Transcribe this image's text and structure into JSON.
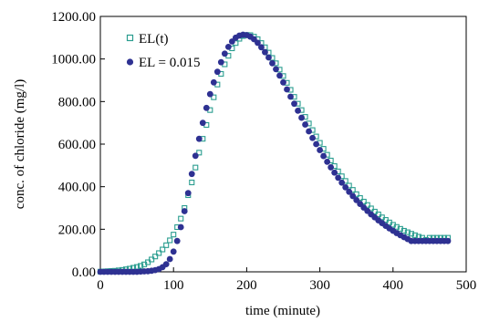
{
  "chart_data": {
    "type": "scatter",
    "xlabel": "time (minute)",
    "ylabel": "conc. of chloride (mg/l)",
    "xlim": [
      0,
      500
    ],
    "ylim": [
      0,
      1200
    ],
    "x_ticks": [
      "0",
      "100",
      "200",
      "300",
      "400",
      "500"
    ],
    "y_ticks": [
      "0.00",
      "200.00",
      "400.00",
      "600.00",
      "800.00",
      "1000.00",
      "1200.00"
    ],
    "grid": false,
    "legend_position": "top-left",
    "series": [
      {
        "name": "EL(t)",
        "marker": "hollow-square",
        "color": "#2a9d8f",
        "x": [
          0,
          5,
          10,
          15,
          20,
          25,
          30,
          35,
          40,
          45,
          50,
          55,
          60,
          65,
          70,
          75,
          80,
          85,
          90,
          95,
          100,
          105,
          110,
          115,
          120,
          125,
          130,
          135,
          140,
          145,
          150,
          155,
          160,
          165,
          170,
          175,
          180,
          185,
          190,
          195,
          200,
          205,
          210,
          215,
          220,
          225,
          230,
          235,
          240,
          245,
          250,
          255,
          260,
          265,
          270,
          275,
          280,
          285,
          290,
          295,
          300,
          305,
          310,
          315,
          320,
          325,
          330,
          335,
          340,
          345,
          350,
          355,
          360,
          365,
          370,
          375,
          380,
          385,
          390,
          395,
          400,
          405,
          410,
          415,
          420,
          425,
          430,
          435,
          440,
          445,
          450,
          455,
          460,
          465,
          470,
          475
        ],
        "y": [
          1,
          2,
          3,
          4,
          5,
          7,
          9,
          12,
          15,
          19,
          23,
          28,
          35,
          45,
          58,
          72,
          88,
          105,
          125,
          148,
          175,
          210,
          250,
          300,
          360,
          420,
          490,
          560,
          625,
          690,
          760,
          820,
          880,
          930,
          975,
          1015,
          1050,
          1075,
          1095,
          1108,
          1113,
          1112,
          1105,
          1093,
          1075,
          1055,
          1030,
          1005,
          980,
          950,
          920,
          888,
          855,
          822,
          790,
          760,
          728,
          697,
          666,
          636,
          606,
          578,
          550,
          523,
          497,
          472,
          449,
          427,
          405,
          385,
          365,
          347,
          330,
          314,
          298,
          283,
          270,
          256,
          244,
          232,
          221,
          211,
          202,
          193,
          186,
          179,
          172,
          165,
          160,
          150,
          160,
          160,
          160,
          160,
          160,
          160
        ]
      },
      {
        "name": "EL = 0.015",
        "marker": "filled-circle",
        "color": "#2e3192",
        "x": [
          0,
          5,
          10,
          15,
          20,
          25,
          30,
          35,
          40,
          45,
          50,
          55,
          60,
          65,
          70,
          75,
          80,
          85,
          90,
          95,
          100,
          105,
          110,
          115,
          120,
          125,
          130,
          135,
          140,
          145,
          150,
          155,
          160,
          165,
          170,
          175,
          180,
          185,
          190,
          195,
          200,
          205,
          210,
          215,
          220,
          225,
          230,
          235,
          240,
          245,
          250,
          255,
          260,
          265,
          270,
          275,
          280,
          285,
          290,
          295,
          300,
          305,
          310,
          315,
          320,
          325,
          330,
          335,
          340,
          345,
          350,
          355,
          360,
          365,
          370,
          375,
          380,
          385,
          390,
          395,
          400,
          405,
          410,
          415,
          420,
          425,
          430,
          435,
          440,
          445,
          450,
          455,
          460,
          465,
          470,
          475
        ],
        "y": [
          0,
          0,
          0,
          0,
          0,
          0,
          0,
          0,
          0,
          0,
          0,
          1,
          2,
          3,
          5,
          8,
          13,
          22,
          36,
          60,
          95,
          145,
          210,
          285,
          370,
          460,
          545,
          625,
          700,
          770,
          835,
          890,
          940,
          985,
          1025,
          1057,
          1082,
          1100,
          1110,
          1114,
          1112,
          1105,
          1093,
          1076,
          1055,
          1032,
          1007,
          980,
          952,
          922,
          890,
          857,
          823,
          790,
          757,
          724,
          692,
          660,
          629,
          600,
          572,
          544,
          517,
          491,
          466,
          442,
          419,
          397,
          376,
          356,
          337,
          319,
          302,
          286,
          270,
          256,
          242,
          229,
          216,
          204,
          193,
          182,
          172,
          163,
          154,
          145,
          145,
          145,
          145,
          145,
          145,
          145,
          145,
          145,
          145,
          145
        ]
      }
    ]
  }
}
